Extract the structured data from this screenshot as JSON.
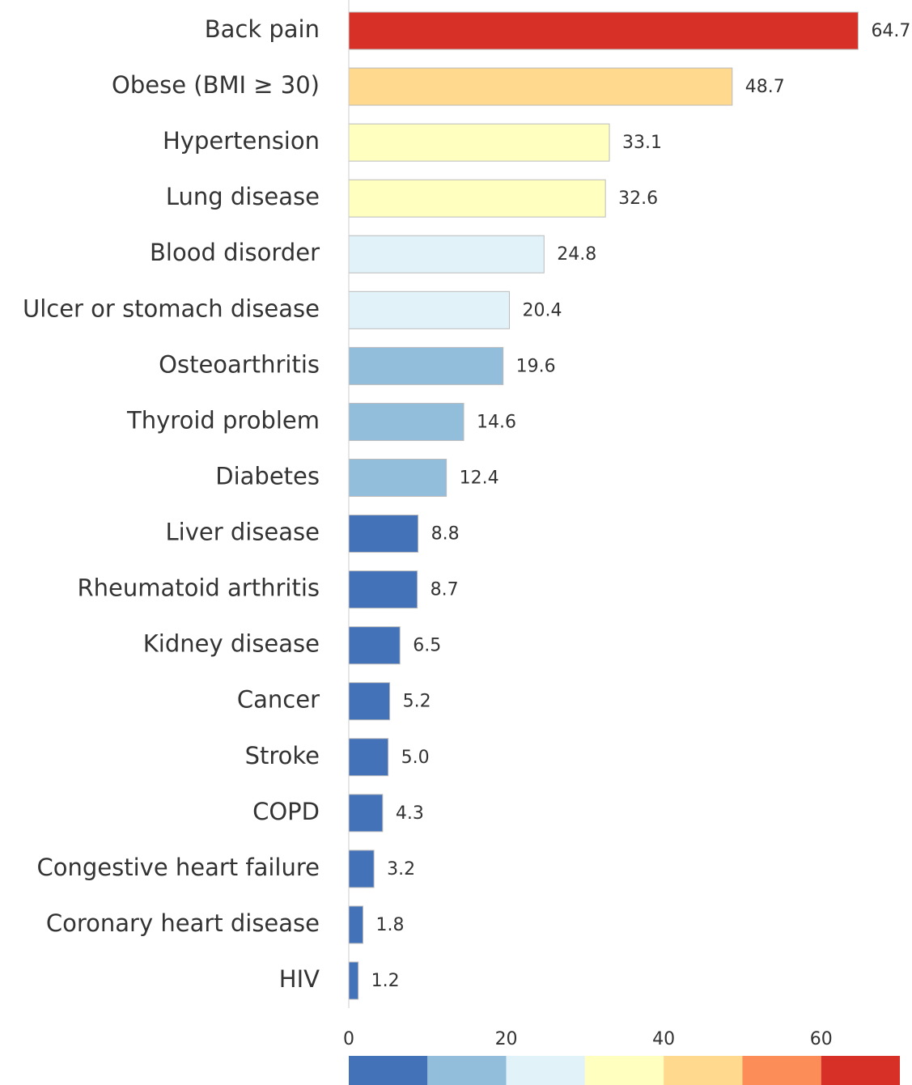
{
  "chart_data": {
    "type": "barh",
    "categories": [
      "Back pain",
      "Obese (BMI ≥ 30)",
      "Hypertension",
      "Lung disease",
      "Blood disorder",
      "Ulcer or stomach disease",
      "Osteoarthritis",
      "Thyroid problem",
      "Diabetes",
      "Liver disease",
      "Rheumatoid arthritis",
      "Kidney disease",
      "Cancer",
      "Stroke",
      "COPD",
      "Congestive heart failure",
      "Coronary heart disease",
      "HIV"
    ],
    "values": [
      64.7,
      48.7,
      33.1,
      32.6,
      24.8,
      20.4,
      19.6,
      14.6,
      12.4,
      8.8,
      8.7,
      6.5,
      5.2,
      5.0,
      4.3,
      3.2,
      1.8,
      1.2
    ],
    "value_labels": [
      "64.7",
      "48.7",
      "33.1",
      "32.6",
      "24.8",
      "20.4",
      "19.6",
      "14.6",
      "12.4",
      "8.8",
      "8.7",
      "6.5",
      "5.2",
      "5.0",
      "4.3",
      "3.2",
      "1.8",
      "1.2"
    ],
    "xlim": [
      0,
      70
    ],
    "xticks": [
      0,
      20,
      40,
      60
    ],
    "grid": false,
    "colorbar": {
      "bounds": [
        0,
        10,
        20,
        30,
        40,
        50,
        60,
        70
      ],
      "colors": [
        "#4472b8",
        "#92bddb",
        "#e1f2f8",
        "#ffffc0",
        "#fed98e",
        "#fc8d59",
        "#d73027"
      ]
    }
  }
}
